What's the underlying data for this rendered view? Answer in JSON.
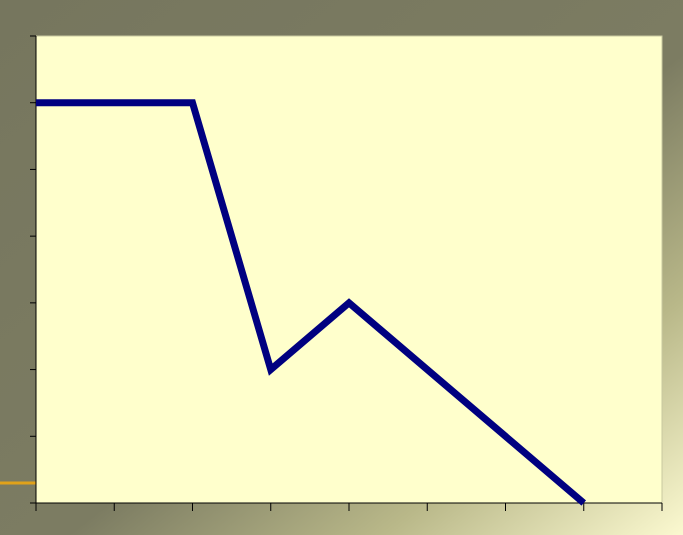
{
  "colors": {
    "frame_dark": "#7a7a60",
    "frame_light": "#fdfbd2",
    "plot_background": "#ffffcc",
    "line": "#000080",
    "axis": "#000000",
    "accent_stroke": "#e0a21a"
  },
  "chart_data": {
    "type": "line",
    "title": "",
    "xlabel": "",
    "ylabel": "",
    "x": [
      0,
      1,
      2,
      3,
      4,
      5,
      6,
      7,
      8
    ],
    "xlim": [
      0,
      8
    ],
    "ylim": [
      0,
      7
    ],
    "series": [
      {
        "values": [
          6,
          6,
          6,
          2,
          3,
          null,
          null,
          0,
          null
        ]
      }
    ],
    "x_ticks": [
      0,
      1,
      2,
      3,
      4,
      5,
      6,
      7,
      8
    ],
    "y_ticks": [
      0,
      1,
      2,
      3,
      4,
      5,
      6,
      7
    ],
    "tick_labels_visible": false,
    "grid": false,
    "legend": "none"
  }
}
